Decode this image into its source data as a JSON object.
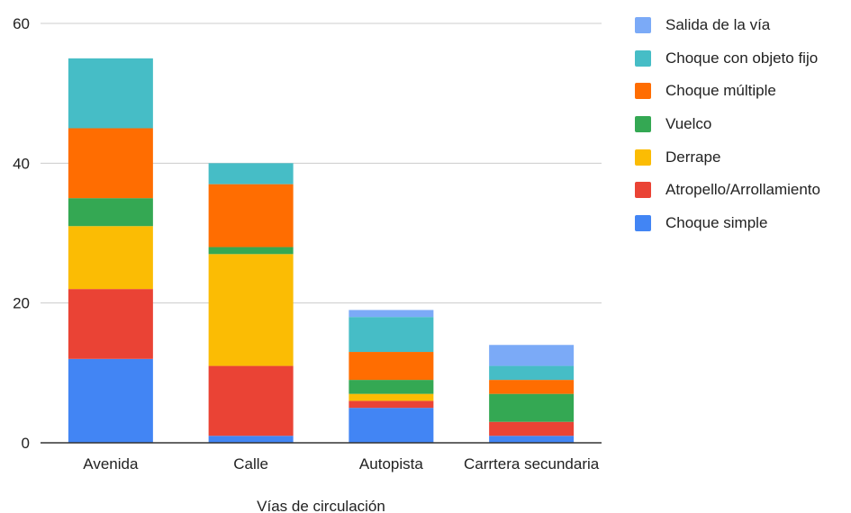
{
  "chart_data": {
    "type": "bar",
    "stacked": true,
    "xlabel": "Vías de circulación",
    "ylabel": "",
    "ylim": [
      0,
      60
    ],
    "yticks": [
      0,
      20,
      40,
      60
    ],
    "grid": true,
    "legend_position": "right",
    "categories": [
      "Avenida",
      "Calle",
      "Autopista",
      "Carrtera secundaria"
    ],
    "series": [
      {
        "name": "Choque simple",
        "color": "#4285f4",
        "values": [
          12,
          1,
          5,
          1
        ]
      },
      {
        "name": "Atropello/Arrollamiento",
        "color": "#ea4335",
        "values": [
          10,
          10,
          1,
          2
        ]
      },
      {
        "name": "Derrape",
        "color": "#fbbc04",
        "values": [
          9,
          16,
          1,
          0
        ]
      },
      {
        "name": "Vuelco",
        "color": "#34a853",
        "values": [
          4,
          1,
          2,
          4
        ]
      },
      {
        "name": "Choque múltiple",
        "color": "#ff6d01",
        "values": [
          10,
          9,
          4,
          2
        ]
      },
      {
        "name": "Choque con objeto fijo",
        "color": "#46bdc6",
        "values": [
          10,
          3,
          5,
          2
        ]
      },
      {
        "name": "Salida de la vía",
        "color": "#7baaf7",
        "values": [
          0,
          0,
          1,
          3
        ]
      }
    ]
  }
}
